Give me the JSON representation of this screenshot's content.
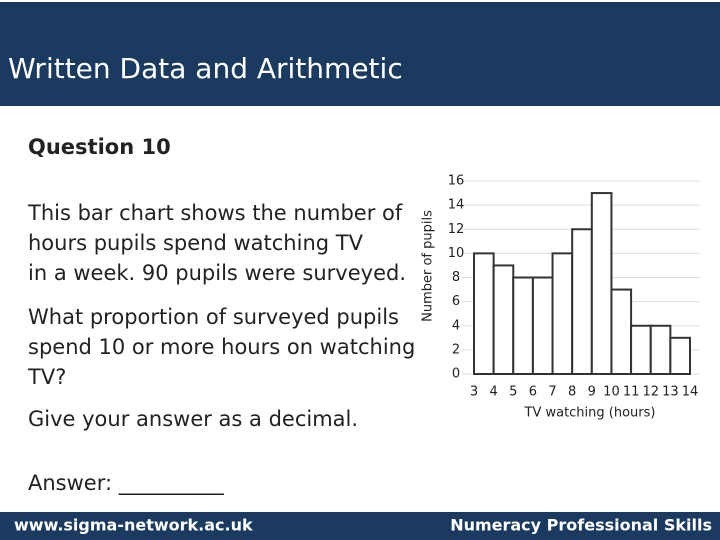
{
  "header": {
    "title": "Written Data and Arithmetic"
  },
  "question": {
    "heading": "Question 10",
    "paragraphs": [
      [
        "This bar chart shows the number of",
        "hours pupils spend watching TV",
        "in a week. 90 pupils were surveyed."
      ],
      [
        "What proportion of surveyed pupils",
        "spend 10 or more hours on watching",
        "TV?"
      ],
      [
        "Give your answer as a decimal."
      ]
    ],
    "answer": "Answer: __________"
  },
  "footer": {
    "left": "www.sigma-network.ac.uk",
    "right": "Numeracy Professional Skills"
  },
  "chart_data": {
    "type": "histogram",
    "bins": [
      3,
      4,
      5,
      6,
      7,
      8,
      9,
      10,
      11,
      12,
      13,
      14
    ],
    "values": [
      10,
      9,
      8,
      8,
      10,
      12,
      15,
      7,
      4,
      4,
      3
    ],
    "color": "#ffffff",
    "xlim": [
      3,
      14
    ],
    "xticks": [
      3,
      4,
      5,
      6,
      7,
      8,
      9,
      10,
      11,
      12,
      13,
      14
    ],
    "ylim": [
      0,
      16
    ],
    "yticks": [
      0,
      2,
      4,
      6,
      8,
      10,
      12,
      14,
      16
    ],
    "x_label": "TV watching (hours)",
    "y_label": "Number of pupils",
    "grid": true
  }
}
